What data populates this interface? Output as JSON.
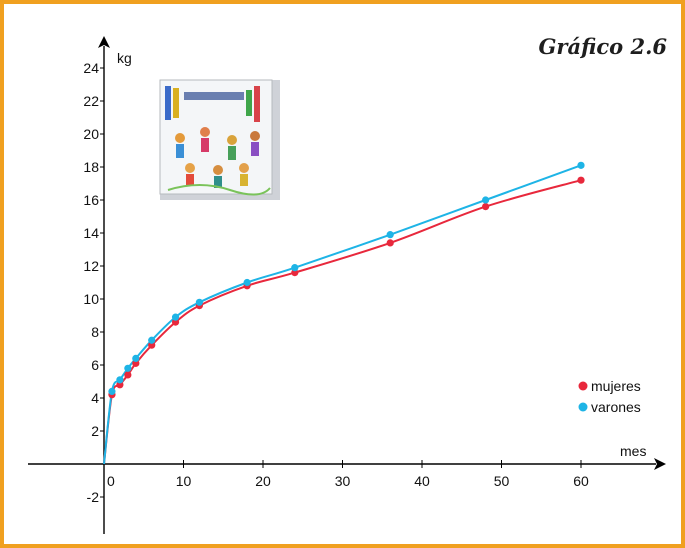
{
  "chart_data": {
    "type": "line",
    "title": "Gráfico 2.6",
    "xlabel": "mes",
    "ylabel": "kg",
    "xlim": [
      -10,
      68
    ],
    "ylim": [
      -4,
      26
    ],
    "x_ticks": [
      0,
      10,
      20,
      30,
      40,
      50,
      60
    ],
    "y_ticks": [
      -2,
      2,
      4,
      6,
      8,
      10,
      12,
      14,
      16,
      18,
      20,
      22,
      24
    ],
    "grid": false,
    "legend": "right",
    "series": [
      {
        "name": "mujeres",
        "color": "#e8283c",
        "x": [
          1,
          2,
          3,
          4,
          6,
          9,
          12,
          18,
          24,
          36,
          48,
          60
        ],
        "y": [
          4.2,
          4.8,
          5.4,
          6.1,
          7.2,
          8.6,
          9.6,
          10.8,
          11.6,
          13.4,
          15.6,
          17.2
        ]
      },
      {
        "name": "varones",
        "color": "#1eb4e6",
        "x": [
          1,
          2,
          3,
          4,
          6,
          9,
          12,
          18,
          24,
          36,
          48,
          60
        ],
        "y": [
          4.4,
          5.1,
          5.8,
          6.4,
          7.5,
          8.9,
          9.8,
          11.0,
          11.9,
          13.9,
          16.0,
          18.1
        ]
      }
    ]
  },
  "illustration": {
    "icon": "children-drawing-icon"
  }
}
